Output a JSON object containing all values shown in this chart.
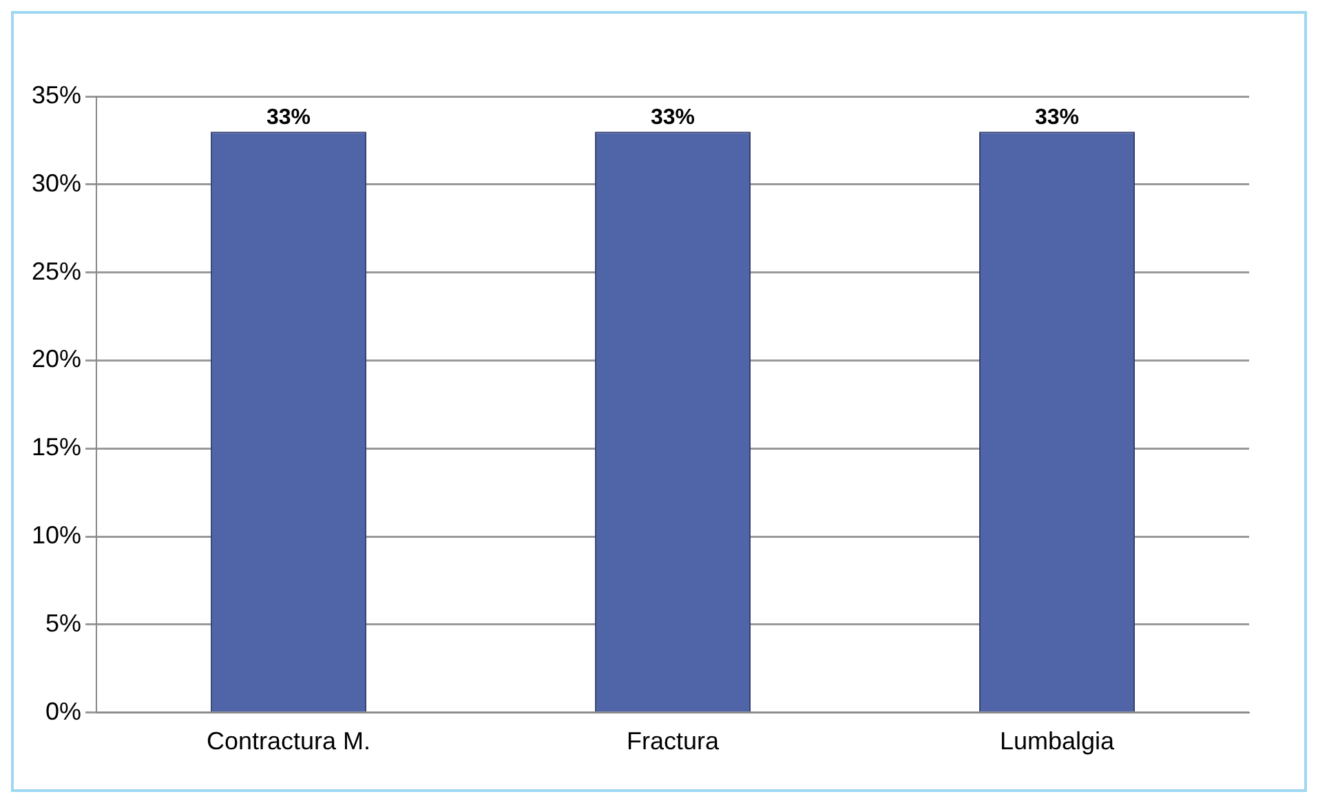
{
  "chart_data": {
    "type": "bar",
    "categories": [
      "Contractura M.",
      "Fractura",
      "Lumbalgia"
    ],
    "values": [
      33,
      33,
      33
    ],
    "color": "#4f65a8",
    "value_labels": [
      "33%",
      "33%",
      "33%"
    ],
    "ylim": [
      0,
      35
    ],
    "yticks": [
      {
        "value": 0,
        "label": "0%"
      },
      {
        "value": 5,
        "label": "5%"
      },
      {
        "value": 10,
        "label": "10%"
      },
      {
        "value": 15,
        "label": "15%"
      },
      {
        "value": 20,
        "label": "20%"
      },
      {
        "value": 25,
        "label": "25%"
      },
      {
        "value": 30,
        "label": "30%"
      },
      {
        "value": 35,
        "label": "35%"
      }
    ],
    "grid": "y"
  }
}
